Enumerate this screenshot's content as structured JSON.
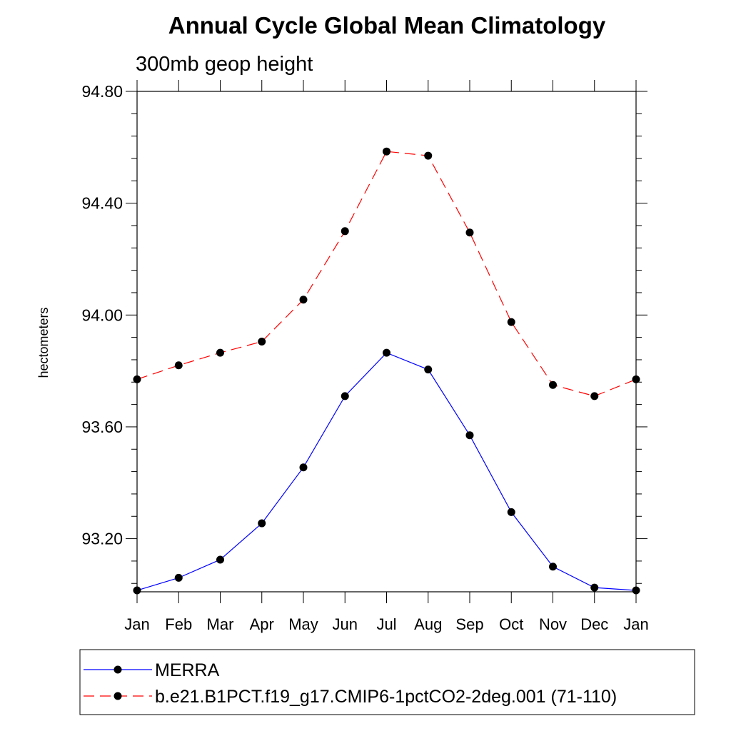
{
  "chart_data": {
    "type": "line",
    "title": "Annual Cycle Global Mean Climatology",
    "subtitle": "300mb geop height",
    "xlabel": "",
    "ylabel": "hectometers",
    "categories": [
      "Jan",
      "Feb",
      "Mar",
      "Apr",
      "May",
      "Jun",
      "Jul",
      "Aug",
      "Sep",
      "Oct",
      "Nov",
      "Dec",
      "Jan"
    ],
    "ylim": [
      93.01,
      94.8
    ],
    "yticks": [
      93.2,
      93.6,
      94.0,
      94.4,
      94.8
    ],
    "ytick_labels": [
      "93.20",
      "93.60",
      "94.00",
      "94.40",
      "94.80"
    ],
    "grid": false,
    "legend_position": "bottom",
    "series": [
      {
        "name": "MERRA",
        "color": "#0000ff",
        "dash": "solid",
        "marker": "filled-circle",
        "values": [
          93.015,
          93.06,
          93.125,
          93.255,
          93.455,
          93.71,
          93.865,
          93.805,
          93.57,
          93.295,
          93.1,
          93.025,
          93.015
        ]
      },
      {
        "name": "b.e21.B1PCT.f19_g17.CMIP6-1pctCO2-2deg.001 (71-110)",
        "color": "#ff0000",
        "dash": "dashed",
        "marker": "filled-circle",
        "values": [
          93.77,
          93.82,
          93.865,
          93.905,
          94.055,
          94.3,
          94.585,
          94.57,
          94.295,
          93.975,
          93.75,
          93.71,
          93.77
        ]
      }
    ]
  }
}
